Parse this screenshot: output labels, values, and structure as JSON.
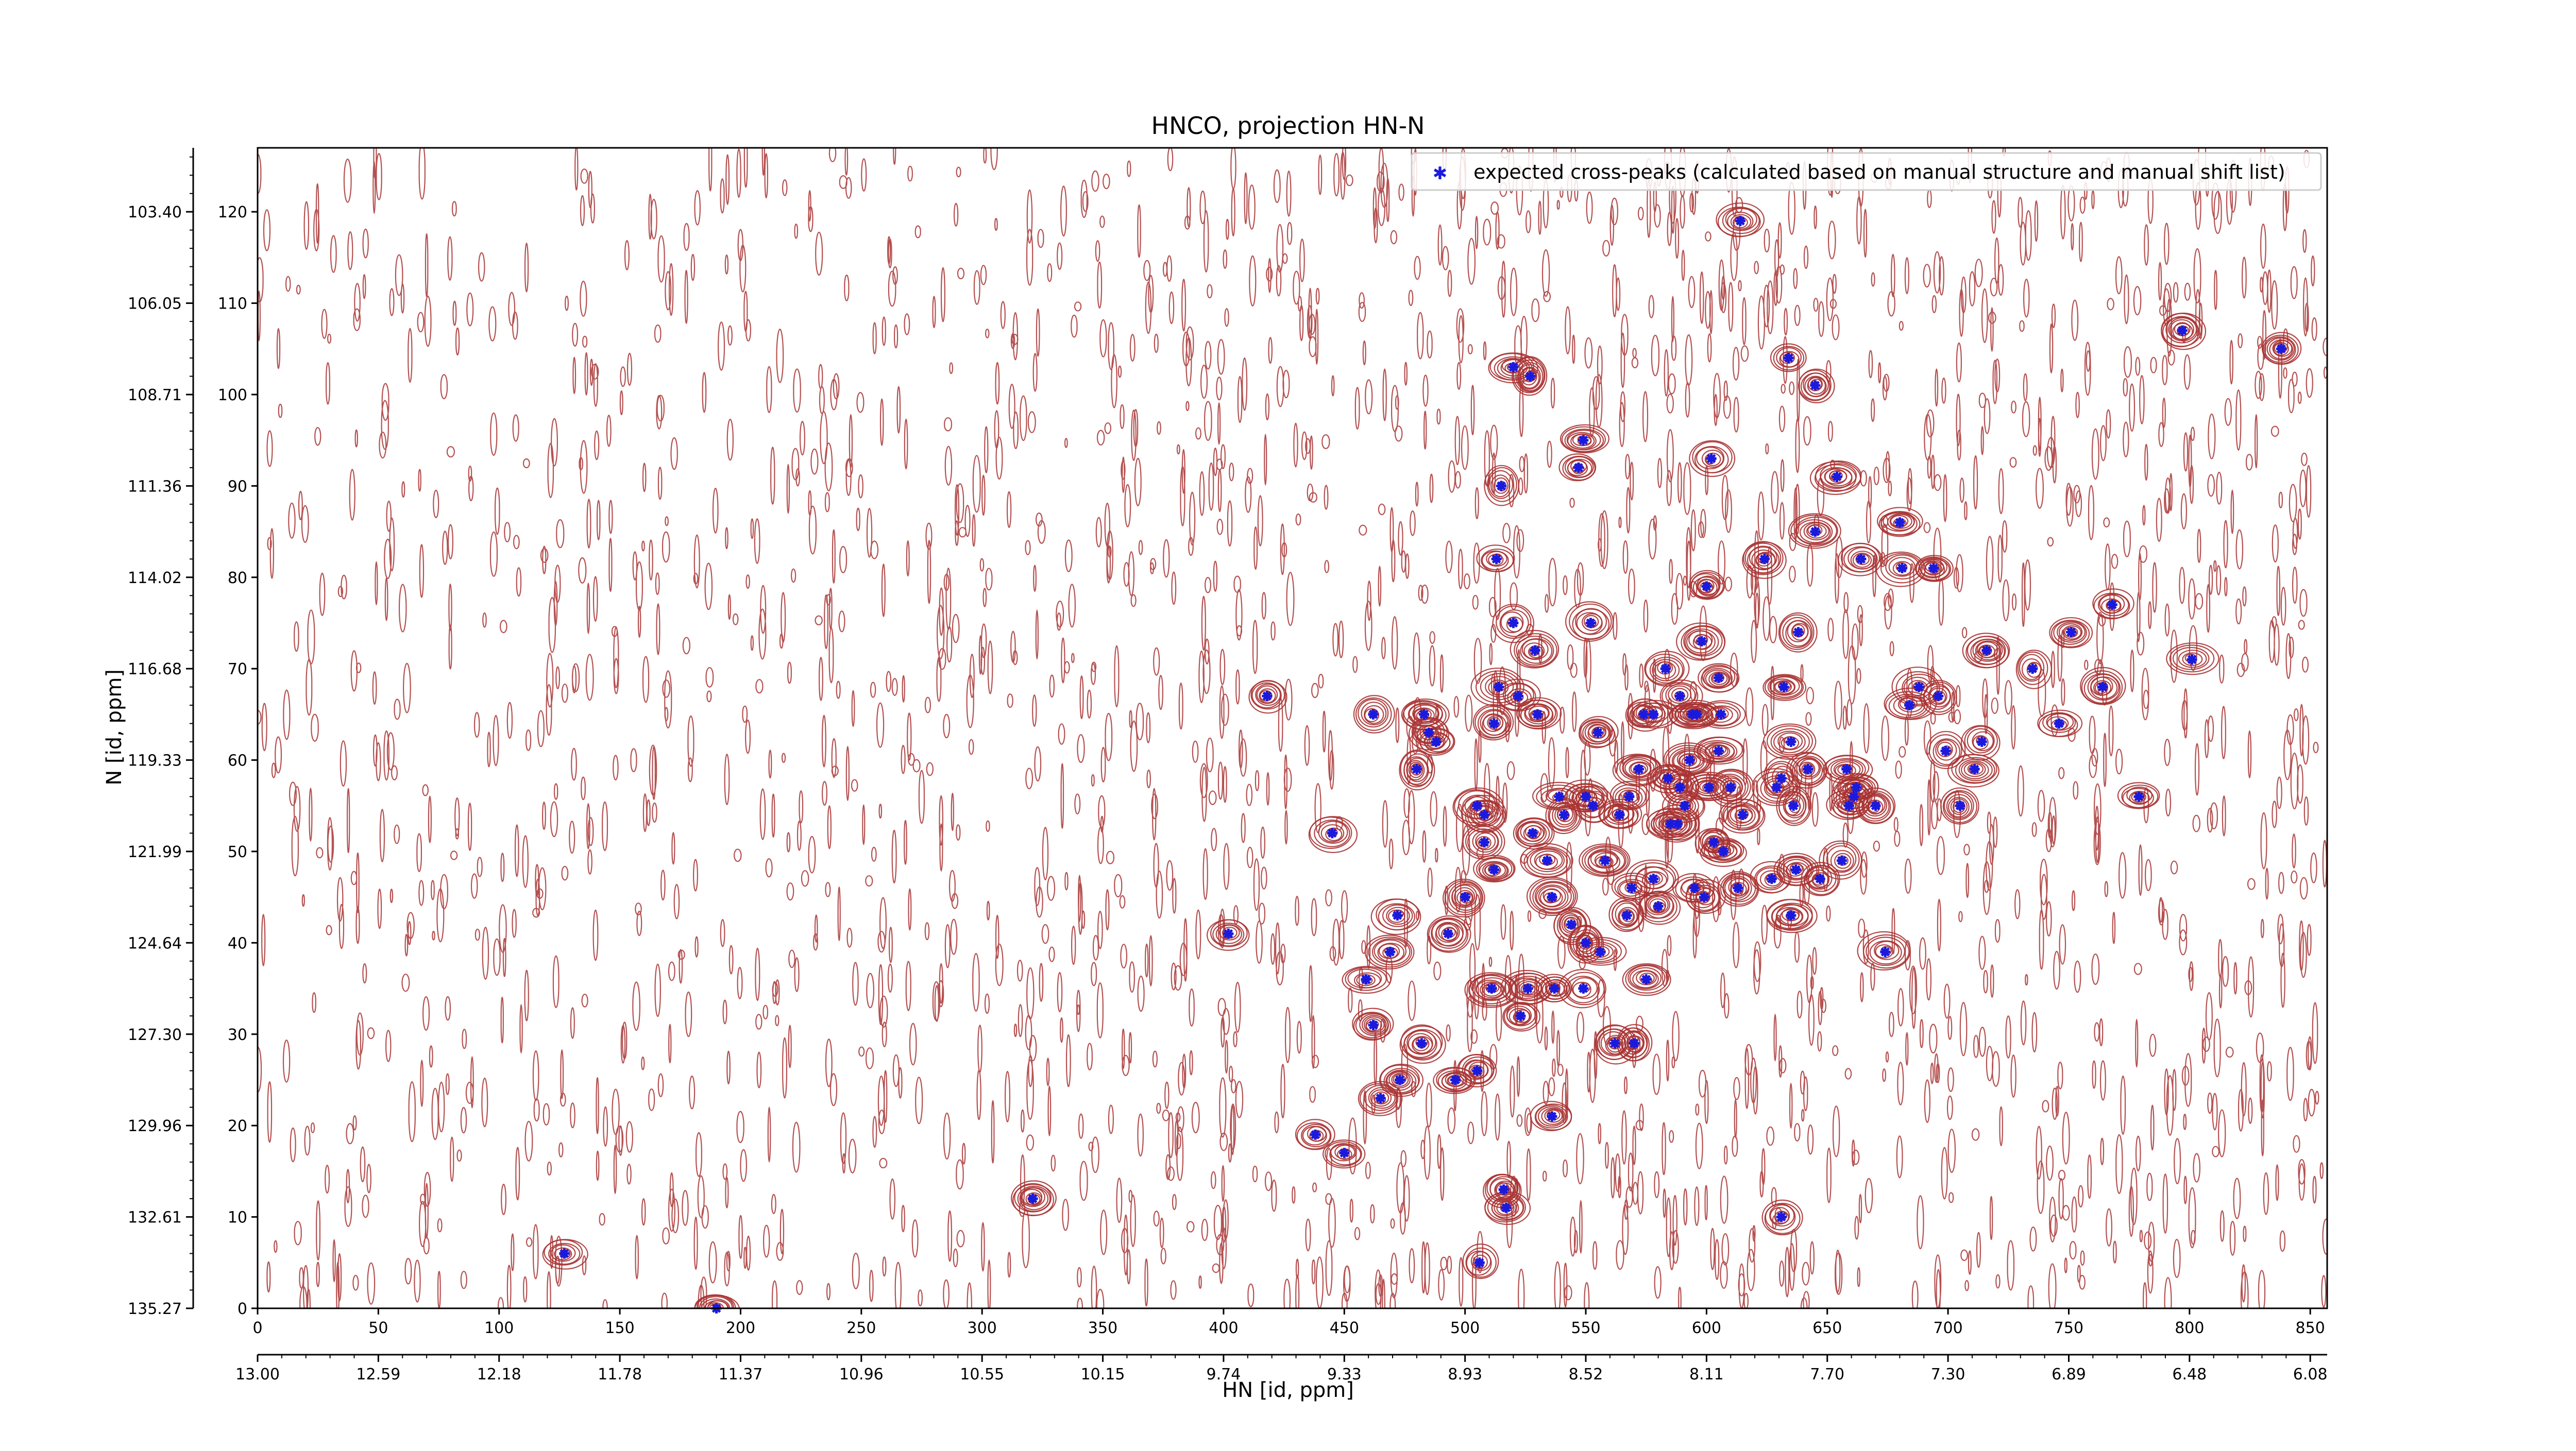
{
  "chart_data": {
    "type": "scatter",
    "title": "HNCO, projection HN-N",
    "xlabel": "HN [id, ppm]",
    "ylabel": "N [id, ppm]",
    "x_index_ticks": [
      "0",
      "50",
      "100",
      "150",
      "200",
      "250",
      "300",
      "350",
      "400",
      "450",
      "500",
      "550",
      "600",
      "650",
      "700",
      "750",
      "800",
      "850"
    ],
    "x_ppm_ticks": [
      "13.00",
      "12.59",
      "12.18",
      "11.78",
      "11.37",
      "10.96",
      "10.55",
      "10.15",
      "9.74",
      "9.33",
      "8.93",
      "8.52",
      "8.11",
      "7.70",
      "7.30",
      "6.89",
      "6.48",
      "6.08"
    ],
    "y_index_ticks": [
      "0",
      "10",
      "20",
      "30",
      "40",
      "50",
      "60",
      "70",
      "80",
      "90",
      "100",
      "110",
      "120"
    ],
    "y_ppm_ticks": [
      "135.27",
      "132.61",
      "129.96",
      "127.30",
      "124.64",
      "121.99",
      "119.33",
      "116.68",
      "114.02",
      "111.36",
      "108.71",
      "106.05",
      "103.40"
    ],
    "xlim": [
      0,
      857
    ],
    "ylim": [
      0,
      127
    ],
    "legend": {
      "label": "expected cross-peaks (calculated based on manual structure and manual shift list)",
      "position": "upper-right"
    },
    "contour_color": "#a83232",
    "peak_color": "#1a1adf",
    "series": [
      {
        "name": "expected cross-peaks (calculated based on manual structure and manual shift list)",
        "points": [
          [
            127,
            6
          ],
          [
            190,
            0
          ],
          [
            321,
            12
          ],
          [
            418,
            67
          ],
          [
            445,
            52
          ],
          [
            438,
            19
          ],
          [
            450,
            17
          ],
          [
            402,
            41
          ],
          [
            462,
            65
          ],
          [
            459,
            36
          ],
          [
            462,
            31
          ],
          [
            465,
            23
          ],
          [
            469,
            39
          ],
          [
            472,
            43
          ],
          [
            473,
            25
          ],
          [
            480,
            59
          ],
          [
            482,
            29
          ],
          [
            483,
            65
          ],
          [
            485,
            63
          ],
          [
            488,
            62
          ],
          [
            493,
            41
          ],
          [
            496,
            25
          ],
          [
            500,
            45
          ],
          [
            505,
            26
          ],
          [
            506,
            5
          ],
          [
            505,
            55
          ],
          [
            508,
            51
          ],
          [
            508,
            54
          ],
          [
            511,
            35
          ],
          [
            512,
            48
          ],
          [
            512,
            64
          ],
          [
            514,
            68
          ],
          [
            516,
            13
          ],
          [
            517,
            11
          ],
          [
            515,
            90
          ],
          [
            513,
            82
          ],
          [
            520,
            103
          ],
          [
            520,
            75
          ],
          [
            522,
            67
          ],
          [
            523,
            32
          ],
          [
            526,
            35
          ],
          [
            527,
            102
          ],
          [
            528,
            52
          ],
          [
            529,
            72
          ],
          [
            530,
            65
          ],
          [
            534,
            49
          ],
          [
            536,
            21
          ],
          [
            536,
            45
          ],
          [
            537,
            35
          ],
          [
            539,
            56
          ],
          [
            541,
            54
          ],
          [
            544,
            42
          ],
          [
            547,
            92
          ],
          [
            549,
            95
          ],
          [
            549,
            35
          ],
          [
            550,
            40
          ],
          [
            550,
            56
          ],
          [
            552,
            75
          ],
          [
            553,
            55
          ],
          [
            555,
            63
          ],
          [
            556,
            39
          ],
          [
            558,
            49
          ],
          [
            562,
            29
          ],
          [
            564,
            54
          ],
          [
            567,
            43
          ],
          [
            568,
            56
          ],
          [
            569,
            46
          ],
          [
            570,
            29
          ],
          [
            572,
            59
          ],
          [
            574,
            65
          ],
          [
            575,
            36
          ],
          [
            578,
            65
          ],
          [
            578,
            47
          ],
          [
            580,
            44
          ],
          [
            583,
            70
          ],
          [
            584,
            58
          ],
          [
            585,
            53
          ],
          [
            588,
            53
          ],
          [
            589,
            57
          ],
          [
            589,
            67
          ],
          [
            591,
            55
          ],
          [
            593,
            60
          ],
          [
            594,
            65
          ],
          [
            595,
            46
          ],
          [
            596,
            65
          ],
          [
            598,
            73
          ],
          [
            599,
            45
          ],
          [
            600,
            79
          ],
          [
            601,
            57
          ],
          [
            602,
            93
          ],
          [
            603,
            51
          ],
          [
            605,
            69
          ],
          [
            605,
            61
          ],
          [
            606,
            65
          ],
          [
            607,
            50
          ],
          [
            610,
            57
          ],
          [
            613,
            46
          ],
          [
            614,
            119
          ],
          [
            615,
            54
          ],
          [
            624,
            82
          ],
          [
            627,
            47
          ],
          [
            629,
            57
          ],
          [
            631,
            10
          ],
          [
            631,
            58
          ],
          [
            632,
            68
          ],
          [
            634,
            104
          ],
          [
            635,
            62
          ],
          [
            635,
            43
          ],
          [
            636,
            55
          ],
          [
            637,
            48
          ],
          [
            638,
            74
          ],
          [
            642,
            59
          ],
          [
            645,
            101
          ],
          [
            645,
            85
          ],
          [
            647,
            47
          ],
          [
            654,
            91
          ],
          [
            656,
            49
          ],
          [
            658,
            59
          ],
          [
            659,
            55
          ],
          [
            661,
            56
          ],
          [
            662,
            57
          ],
          [
            664,
            82
          ],
          [
            670,
            55
          ],
          [
            674,
            39
          ],
          [
            680,
            86
          ],
          [
            681,
            81
          ],
          [
            684,
            66
          ],
          [
            688,
            68
          ],
          [
            694,
            81
          ],
          [
            696,
            67
          ],
          [
            699,
            61
          ],
          [
            705,
            55
          ],
          [
            711,
            59
          ],
          [
            714,
            62
          ],
          [
            716,
            72
          ],
          [
            735,
            70
          ],
          [
            746,
            64
          ],
          [
            751,
            74
          ],
          [
            764,
            68
          ],
          [
            768,
            77
          ],
          [
            779,
            56
          ],
          [
            797,
            107
          ],
          [
            801,
            71
          ],
          [
            838,
            105
          ]
        ]
      }
    ]
  }
}
